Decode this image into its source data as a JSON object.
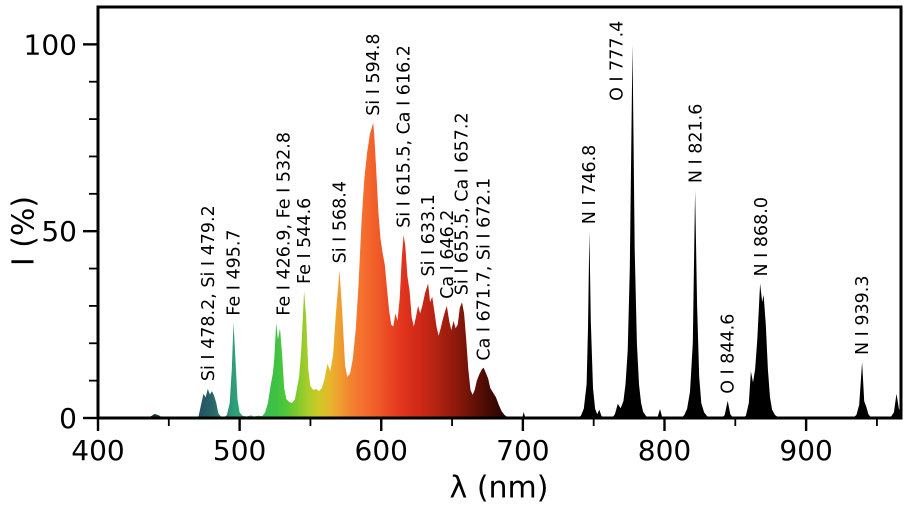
{
  "figure": {
    "background": "#ffffff",
    "frame_color": "#000000",
    "text_color": "#000000"
  },
  "chart_data": {
    "type": "area",
    "title": "",
    "xlabel": "λ (nm)",
    "ylabel": "I (%)",
    "xlim": [
      400,
      967
    ],
    "ylim": [
      0,
      110
    ],
    "grid": false,
    "legend": null,
    "series_name": "emission-spectrum-intensity",
    "x_major_ticks": [
      400,
      500,
      600,
      700,
      800,
      900
    ],
    "x_minor_ticks": [
      450,
      550,
      650,
      750,
      850,
      950
    ],
    "y_major_ticks": [
      0,
      50,
      100
    ],
    "y_minor_ticks": [
      10,
      20,
      30,
      40,
      60,
      70,
      80,
      90
    ],
    "points": [
      [
        400,
        0
      ],
      [
        435,
        0
      ],
      [
        438,
        0.6
      ],
      [
        440,
        1.1
      ],
      [
        443,
        0.7
      ],
      [
        446,
        0
      ],
      [
        458,
        0
      ],
      [
        460,
        0.4
      ],
      [
        462,
        0
      ],
      [
        469,
        0
      ],
      [
        471,
        0.5
      ],
      [
        473,
        4
      ],
      [
        474.5,
        6.5
      ],
      [
        476,
        5.5
      ],
      [
        477.5,
        7.8
      ],
      [
        479,
        6.3
      ],
      [
        480.5,
        7.2
      ],
      [
        482,
        6
      ],
      [
        483.5,
        4
      ],
      [
        485,
        1.2
      ],
      [
        487,
        0.3
      ],
      [
        489,
        0.2
      ],
      [
        491,
        0.8
      ],
      [
        493,
        4
      ],
      [
        494.5,
        13
      ],
      [
        495.7,
        25.5
      ],
      [
        497,
        16
      ],
      [
        498.5,
        5
      ],
      [
        500,
        1.5
      ],
      [
        502,
        0.6
      ],
      [
        505,
        0.4
      ],
      [
        508,
        0.7
      ],
      [
        510,
        0.4
      ],
      [
        513,
        0.6
      ],
      [
        516,
        0.5
      ],
      [
        518,
        1.5
      ],
      [
        520,
        4
      ],
      [
        522,
        9
      ],
      [
        523.5,
        12
      ],
      [
        524.5,
        16
      ],
      [
        525.8,
        25.5
      ],
      [
        527,
        21
      ],
      [
        528.5,
        24
      ],
      [
        530,
        17
      ],
      [
        531.5,
        8
      ],
      [
        533,
        5
      ],
      [
        535,
        4.3
      ],
      [
        537,
        4
      ],
      [
        539,
        5
      ],
      [
        540.5,
        8
      ],
      [
        542,
        11
      ],
      [
        543.5,
        18
      ],
      [
        545.5,
        34
      ],
      [
        547,
        27
      ],
      [
        548.5,
        13
      ],
      [
        550,
        8.5
      ],
      [
        552,
        7.5
      ],
      [
        554,
        7.8
      ],
      [
        556,
        7.2
      ],
      [
        558,
        8
      ],
      [
        560,
        10.5
      ],
      [
        562,
        14.5
      ],
      [
        564,
        12.5
      ],
      [
        566,
        17
      ],
      [
        568,
        28
      ],
      [
        570.5,
        39.5
      ],
      [
        572.5,
        28
      ],
      [
        574.5,
        14
      ],
      [
        576,
        11
      ],
      [
        578,
        12
      ],
      [
        580,
        16
      ],
      [
        582,
        24
      ],
      [
        584,
        36
      ],
      [
        586,
        52
      ],
      [
        588,
        64
      ],
      [
        590,
        71
      ],
      [
        592,
        76
      ],
      [
        594.3,
        79
      ],
      [
        595,
        76
      ],
      [
        596.5,
        66
      ],
      [
        598,
        55
      ],
      [
        599.5,
        48
      ],
      [
        601,
        44
      ],
      [
        602.5,
        41
      ],
      [
        604,
        35
      ],
      [
        605.5,
        29
      ],
      [
        607,
        25
      ],
      [
        608.5,
        24.5
      ],
      [
        610,
        28
      ],
      [
        611.5,
        26
      ],
      [
        613,
        32
      ],
      [
        614.5,
        43
      ],
      [
        615.8,
        49
      ],
      [
        617,
        46
      ],
      [
        618.5,
        38
      ],
      [
        620,
        34
      ],
      [
        621.5,
        27
      ],
      [
        623,
        24.5
      ],
      [
        624.5,
        27
      ],
      [
        626,
        30
      ],
      [
        627.5,
        28
      ],
      [
        629,
        30
      ],
      [
        631,
        33.5
      ],
      [
        633.1,
        36
      ],
      [
        634.5,
        31
      ],
      [
        636,
        32.5
      ],
      [
        637.5,
        28.5
      ],
      [
        639,
        24.5
      ],
      [
        640.5,
        22
      ],
      [
        642,
        24
      ],
      [
        643.5,
        26.5
      ],
      [
        645,
        28.5
      ],
      [
        646.3,
        30
      ],
      [
        648,
        26
      ],
      [
        649.5,
        23.5
      ],
      [
        651,
        26
      ],
      [
        652.5,
        24
      ],
      [
        654,
        25
      ],
      [
        655.5,
        29.5
      ],
      [
        657,
        31
      ],
      [
        658.5,
        28
      ],
      [
        660,
        21
      ],
      [
        661.5,
        13
      ],
      [
        663,
        7.5
      ],
      [
        664.5,
        6.2
      ],
      [
        666,
        7.5
      ],
      [
        667.5,
        10
      ],
      [
        669,
        11.5
      ],
      [
        671,
        13
      ],
      [
        672.3,
        13.5
      ],
      [
        674,
        12
      ],
      [
        675.5,
        10.5
      ],
      [
        677,
        8
      ],
      [
        679,
        6.8
      ],
      [
        681,
        5.5
      ],
      [
        683,
        3.5
      ],
      [
        685,
        1.8
      ],
      [
        687,
        0.8
      ],
      [
        689,
        0.3
      ],
      [
        692,
        0
      ],
      [
        699.5,
        0
      ],
      [
        700.6,
        1.6
      ],
      [
        701.7,
        0
      ],
      [
        739,
        0
      ],
      [
        741,
        0.6
      ],
      [
        743,
        2.5
      ],
      [
        745,
        9
      ],
      [
        746,
        24
      ],
      [
        747,
        50
      ],
      [
        748,
        26
      ],
      [
        749.5,
        8
      ],
      [
        751,
        2.5
      ],
      [
        752.5,
        1
      ],
      [
        754,
        2.2
      ],
      [
        755.5,
        0.5
      ],
      [
        758,
        0
      ],
      [
        763,
        0
      ],
      [
        765,
        1
      ],
      [
        767,
        3.8
      ],
      [
        769,
        2.6
      ],
      [
        771,
        4.5
      ],
      [
        772.5,
        9
      ],
      [
        774,
        18
      ],
      [
        775.5,
        40
      ],
      [
        777.4,
        100
      ],
      [
        779,
        45
      ],
      [
        780.5,
        20
      ],
      [
        782,
        9
      ],
      [
        783.5,
        4
      ],
      [
        785,
        1.6
      ],
      [
        787,
        0.5
      ],
      [
        789.5,
        0
      ],
      [
        795,
        0
      ],
      [
        796.8,
        2.4
      ],
      [
        798.5,
        0
      ],
      [
        812,
        0
      ],
      [
        814,
        0.8
      ],
      [
        816,
        2.5
      ],
      [
        818,
        7
      ],
      [
        820,
        20
      ],
      [
        821.6,
        61
      ],
      [
        823,
        30
      ],
      [
        824.5,
        11
      ],
      [
        826,
        4
      ],
      [
        828,
        1.5
      ],
      [
        830,
        0.5
      ],
      [
        832.5,
        0
      ],
      [
        840.5,
        0
      ],
      [
        842.5,
        0.8
      ],
      [
        844.6,
        4.6
      ],
      [
        846.5,
        1
      ],
      [
        848.5,
        0
      ],
      [
        855,
        0
      ],
      [
        857.5,
        0.6
      ],
      [
        859.5,
        4
      ],
      [
        861,
        12.5
      ],
      [
        862.5,
        9.5
      ],
      [
        864,
        13
      ],
      [
        865.5,
        21
      ],
      [
        867.5,
        36
      ],
      [
        869,
        31
      ],
      [
        870,
        33
      ],
      [
        871.5,
        25
      ],
      [
        873,
        13
      ],
      [
        874.5,
        5.5
      ],
      [
        876,
        2.2
      ],
      [
        878,
        0.8
      ],
      [
        881,
        0
      ],
      [
        890,
        0
      ],
      [
        933,
        0
      ],
      [
        935.5,
        0.8
      ],
      [
        937.5,
        3.5
      ],
      [
        939.5,
        15
      ],
      [
        941,
        4.5
      ],
      [
        942.5,
        3
      ],
      [
        944,
        1
      ],
      [
        946,
        0
      ],
      [
        956,
        0
      ],
      [
        960,
        0.4
      ],
      [
        962,
        1.5
      ],
      [
        963.8,
        6.5
      ],
      [
        965.5,
        2.5
      ],
      [
        967,
        1.5
      ]
    ],
    "wavelength_colors": [
      [
        400,
        "#222222"
      ],
      [
        445,
        "#173b44"
      ],
      [
        470,
        "#1f525e"
      ],
      [
        479,
        "#2a5f68"
      ],
      [
        488,
        "#2b806d"
      ],
      [
        496,
        "#2f9e78"
      ],
      [
        505,
        "#32ad62"
      ],
      [
        516,
        "#38bb50"
      ],
      [
        526,
        "#3fc243"
      ],
      [
        532,
        "#4cc838"
      ],
      [
        540,
        "#7bca2e"
      ],
      [
        548,
        "#a8cc29"
      ],
      [
        556,
        "#cec926"
      ],
      [
        564,
        "#e8b52b"
      ],
      [
        571,
        "#f09d31"
      ],
      [
        580,
        "#f37e2f"
      ],
      [
        590,
        "#f4692e"
      ],
      [
        598,
        "#f05a28"
      ],
      [
        606,
        "#ea4522"
      ],
      [
        616,
        "#e0331d"
      ],
      [
        626,
        "#cf2a18"
      ],
      [
        636,
        "#bb2413"
      ],
      [
        646,
        "#a01d0e"
      ],
      [
        656,
        "#84170a"
      ],
      [
        665,
        "#651106"
      ],
      [
        674,
        "#4a0c04"
      ],
      [
        683,
        "#320703"
      ],
      [
        692,
        "#1a0301"
      ],
      [
        702,
        "#000000"
      ],
      [
        967,
        "#000000"
      ]
    ],
    "peak_labels": [
      {
        "label": "Si I 478.2, Si I 479.2",
        "nm": 477.5,
        "pct": 8
      },
      {
        "label": "Fe I 495.7",
        "nm": 495.7,
        "pct": 25.5
      },
      {
        "label": "Fe I 426.9, Fe I 532.8",
        "nm": 531,
        "pct": 25.5
      },
      {
        "label": "Fe I 544.6",
        "nm": 545.5,
        "pct": 34
      },
      {
        "label": "Si I 568.4",
        "nm": 570.5,
        "pct": 39.5
      },
      {
        "label": "Si I 594.8",
        "nm": 594.3,
        "pct": 79
      },
      {
        "label": "Si I 615.5, Ca I 616.2",
        "nm": 615.8,
        "pct": 49
      },
      {
        "label": "Si I 633.1",
        "nm": 633.1,
        "pct": 36
      },
      {
        "label": "Ca I 646.2",
        "nm": 646.3,
        "pct": 30
      },
      {
        "label": "Si I 655.5, Ca I 657.2",
        "nm": 656.8,
        "pct": 31
      },
      {
        "label": "Ca I 671.7, Si I 672.1",
        "nm": 672.3,
        "pct": 13.5
      },
      {
        "label": "N I 746.8",
        "nm": 746.8,
        "pct": 50
      },
      {
        "label": "O I 777.4",
        "nm": 777.4,
        "pct": 83,
        "dx": -16
      },
      {
        "label": "N I 821.6",
        "nm": 822,
        "pct": 61
      },
      {
        "label": "O I 844.6",
        "nm": 844.6,
        "pct": 4.6
      },
      {
        "label": "N I 868.0",
        "nm": 868,
        "pct": 36
      },
      {
        "label": "N I 939.3",
        "nm": 939.5,
        "pct": 15
      }
    ]
  }
}
